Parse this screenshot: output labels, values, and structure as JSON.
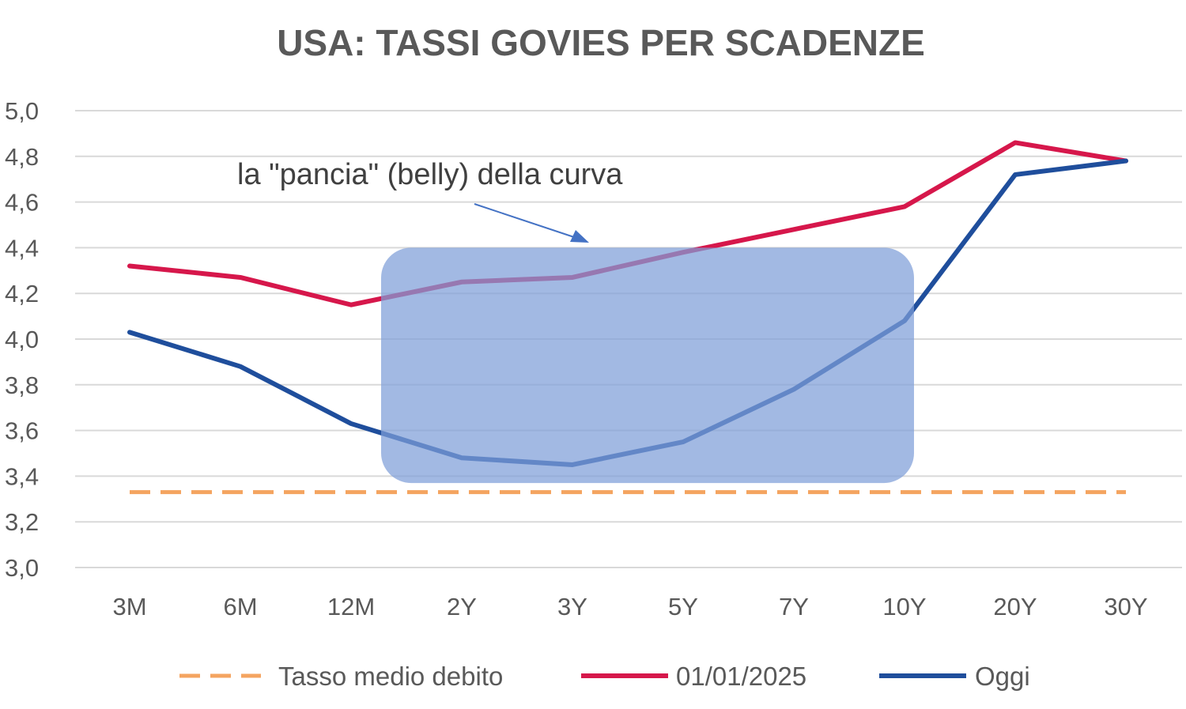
{
  "chart_data": {
    "type": "line",
    "title": "USA: TASSI GOVIES PER SCADENZE",
    "xlabel": "",
    "ylabel": "",
    "categories": [
      "3M",
      "6M",
      "12M",
      "2Y",
      "3Y",
      "5Y",
      "7Y",
      "10Y",
      "20Y",
      "30Y"
    ],
    "ylim": [
      3.0,
      5.0
    ],
    "yticks": [
      "3,0",
      "3,2",
      "3,4",
      "3,6",
      "3,8",
      "4,0",
      "4,2",
      "4,4",
      "4,6",
      "4,8",
      "5,0"
    ],
    "grid": true,
    "legend_position": "bottom",
    "series": [
      {
        "name": "Tasso medio debito",
        "color": "#f4a460",
        "dashed": true,
        "values": [
          3.33,
          3.33,
          3.33,
          3.33,
          3.33,
          3.33,
          3.33,
          3.33,
          3.33,
          3.33
        ]
      },
      {
        "name": "01/01/2025",
        "color": "#d6174b",
        "dashed": false,
        "values": [
          4.32,
          4.27,
          4.15,
          4.25,
          4.27,
          4.38,
          4.48,
          4.58,
          4.86,
          4.78
        ]
      },
      {
        "name": "Oggi",
        "color": "#1f4e9c",
        "dashed": false,
        "values": [
          4.03,
          3.88,
          3.63,
          3.48,
          3.45,
          3.55,
          3.78,
          4.08,
          4.72,
          4.78
        ]
      }
    ],
    "annotation": {
      "text": "la \"pancia\" (belly) della curva",
      "highlight_range": [
        "12M",
        "10Y"
      ],
      "highlight_y": [
        3.37,
        4.4
      ],
      "highlight_color": "#7e9ed8"
    }
  }
}
